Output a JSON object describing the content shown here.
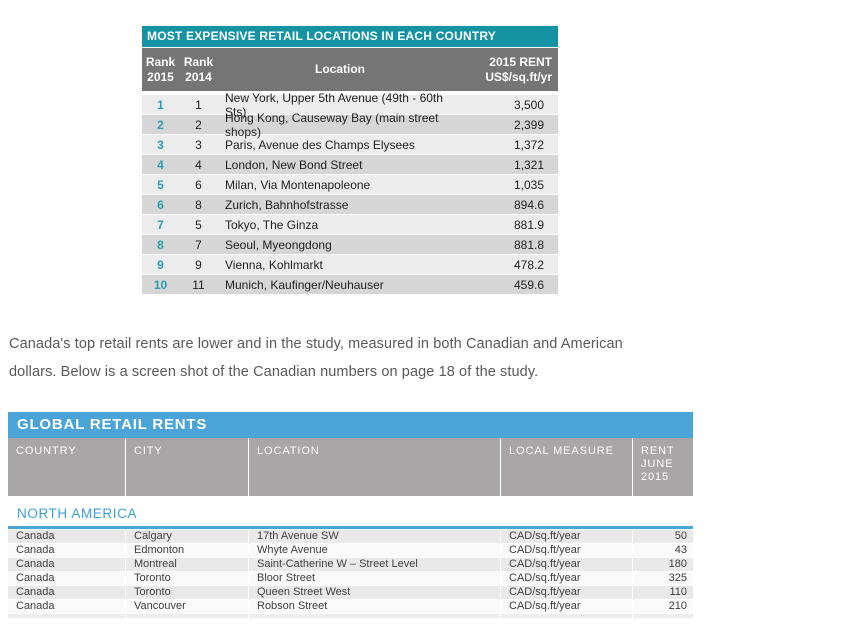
{
  "colors": {
    "teal_header": "#1593a2",
    "gray_header_1": "#757575",
    "row_light_1": "#ececec",
    "row_dark_1": "#d6d6d6",
    "rank_accent": "#2d9cb4",
    "blue_header": "#4aa4d7",
    "gray_header_2": "#a8a6a6",
    "section_blue": "#3e9ed7"
  },
  "table1": {
    "title": "MOST EXPENSIVE RETAIL LOCATIONS IN EACH COUNTRY",
    "columns": {
      "rank2015": "Rank\n2015",
      "rank2014": "Rank\n2014",
      "location": "Location",
      "rent": "2015 RENT\nUS$/sq.ft/yr"
    },
    "rows": [
      {
        "rank2015": "1",
        "rank2014": "1",
        "location": "New York, Upper 5th Avenue (49th - 60th Sts)",
        "rent": "3,500"
      },
      {
        "rank2015": "2",
        "rank2014": "2",
        "location": "Hong Kong, Causeway Bay (main street shops)",
        "rent": "2,399"
      },
      {
        "rank2015": "3",
        "rank2014": "3",
        "location": "Paris, Avenue des Champs Elysees",
        "rent": "1,372"
      },
      {
        "rank2015": "4",
        "rank2014": "4",
        "location": "London, New Bond Street",
        "rent": "1,321"
      },
      {
        "rank2015": "5",
        "rank2014": "6",
        "location": "Milan, Via Montenapoleone",
        "rent": "1,035"
      },
      {
        "rank2015": "6",
        "rank2014": "8",
        "location": "Zurich, Bahnhofstrasse",
        "rent": "894.6"
      },
      {
        "rank2015": "7",
        "rank2014": "5",
        "location": "Tokyo, The Ginza",
        "rent": "881.9"
      },
      {
        "rank2015": "8",
        "rank2014": "7",
        "location": "Seoul, Myeongdong",
        "rent": "881.8"
      },
      {
        "rank2015": "9",
        "rank2014": "9",
        "location": "Vienna, Kohlmarkt",
        "rent": "478.2"
      },
      {
        "rank2015": "10",
        "rank2014": "11",
        "location": "Munich, Kaufinger/Neuhauser",
        "rent": "459.6"
      }
    ]
  },
  "paragraph": {
    "line1": "Canada's top retail rents are lower and in the study, measured in both Canadian and American",
    "line2": "dollars. Below is a screen shot of the Canadian numbers on page 18 of the study."
  },
  "table2": {
    "title": "GLOBAL RETAIL RENTS",
    "columns": {
      "country": "COUNTRY",
      "city": "CITY",
      "location": "LOCATION",
      "measure": "LOCAL MEASURE",
      "rent": "RENT\nJUNE\n2015"
    },
    "section": "NORTH AMERICA",
    "rows": [
      {
        "country": "Canada",
        "city": "Calgary",
        "location": "17th Avenue SW",
        "measure": "CAD/sq.ft/year",
        "rent": "50"
      },
      {
        "country": "Canada",
        "city": "Edmonton",
        "location": "Whyte Avenue",
        "measure": "CAD/sq.ft/year",
        "rent": "43"
      },
      {
        "country": "Canada",
        "city": "Montreal",
        "location": "Saint-Catherine W – Street Level",
        "measure": "CAD/sq.ft/year",
        "rent": "180"
      },
      {
        "country": "Canada",
        "city": "Toronto",
        "location": "Bloor Street",
        "measure": "CAD/sq.ft/year",
        "rent": "325"
      },
      {
        "country": "Canada",
        "city": "Toronto",
        "location": "Queen Street West",
        "measure": "CAD/sq.ft/year",
        "rent": "110"
      },
      {
        "country": "Canada",
        "city": "Vancouver",
        "location": "Robson Street",
        "measure": "CAD/sq.ft/year",
        "rent": "210"
      }
    ]
  }
}
